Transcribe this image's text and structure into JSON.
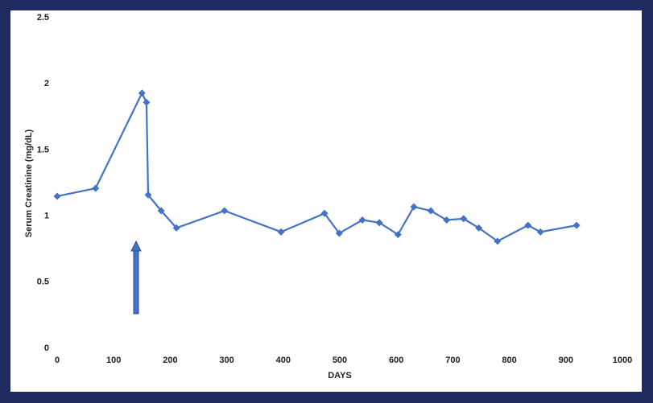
{
  "chart_data": {
    "type": "line",
    "x_label": "DAYS",
    "y_label": "Serum Creatinine (mg/dL)",
    "x": [
      0,
      68,
      150,
      158,
      161,
      184,
      211,
      296,
      396,
      473,
      499,
      540,
      570,
      603,
      631,
      661,
      689,
      719,
      746,
      779,
      833,
      855,
      919
    ],
    "series": [
      {
        "color": "#4472c4",
        "values": [
          1.15,
          1.21,
          1.93,
          1.86,
          1.16,
          1.04,
          0.91,
          1.04,
          0.88,
          1.02,
          0.87,
          0.97,
          0.95,
          0.86,
          1.07,
          1.04,
          0.97,
          0.98,
          0.91,
          0.81,
          0.93,
          0.88,
          0.93
        ]
      }
    ],
    "xlim": [
      0,
      1000
    ],
    "xticks": [
      0,
      100,
      200,
      300,
      400,
      500,
      600,
      700,
      800,
      900,
      1000
    ],
    "ylim": [
      0,
      2.5
    ],
    "yticks": [
      0,
      0.5,
      1,
      1.5,
      2,
      2.5
    ]
  }
}
